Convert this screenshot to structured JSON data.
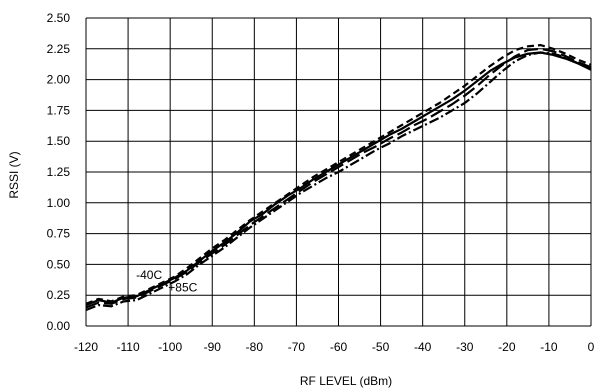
{
  "chart_data": {
    "type": "line",
    "title": "",
    "xlabel": "RF LEVEL (dBm)",
    "ylabel": "RSSI (V)",
    "xlim": [
      -120,
      0
    ],
    "ylim": [
      0,
      2.5
    ],
    "xticks": [
      -120,
      -110,
      -100,
      -90,
      -80,
      -70,
      -60,
      -50,
      -40,
      -30,
      -20,
      -10,
      0
    ],
    "xtick_labels": [
      "-120",
      "-110",
      "-100",
      "-90",
      "-80",
      "-70",
      "-60",
      "-50",
      "-40",
      "-30",
      "-20",
      "-10",
      "0"
    ],
    "yticks": [
      0,
      0.25,
      0.5,
      0.75,
      1.0,
      1.25,
      1.5,
      1.75,
      2.0,
      2.25,
      2.5
    ],
    "ytick_labels": [
      "0.00",
      "0.25",
      "0.50",
      "0.75",
      "1.00",
      "1.25",
      "1.50",
      "1.75",
      "2.00",
      "2.25",
      "2.50"
    ],
    "grid": true,
    "annotations": [
      {
        "text": "-40C",
        "x": -105,
        "y": 0.38
      },
      {
        "text": "+85C",
        "x": -97,
        "y": 0.28
      }
    ],
    "series": [
      {
        "style": "solid",
        "x": [
          -120,
          -117,
          -114,
          -111,
          -108,
          -105,
          -102,
          -99,
          -96,
          -93,
          -90,
          -87,
          -84,
          -81,
          -78,
          -75,
          -72,
          -69,
          -66,
          -63,
          -60,
          -57,
          -54,
          -51,
          -48,
          -45,
          -42,
          -39,
          -36,
          -33,
          -30,
          -27,
          -24,
          -21,
          -18,
          -15,
          -12,
          -9,
          -6,
          -3,
          0
        ],
        "y": [
          0.17,
          0.21,
          0.19,
          0.23,
          0.24,
          0.29,
          0.34,
          0.39,
          0.45,
          0.53,
          0.61,
          0.68,
          0.76,
          0.85,
          0.91,
          0.99,
          1.06,
          1.12,
          1.19,
          1.25,
          1.31,
          1.37,
          1.43,
          1.49,
          1.55,
          1.6,
          1.66,
          1.72,
          1.78,
          1.84,
          1.91,
          1.99,
          2.07,
          2.13,
          2.18,
          2.21,
          2.22,
          2.2,
          2.17,
          2.13,
          2.08
        ]
      },
      {
        "style": "dashed",
        "x": [
          -120,
          -117,
          -114,
          -111,
          -108,
          -105,
          -102,
          -99,
          -96,
          -93,
          -90,
          -87,
          -84,
          -81,
          -78,
          -75,
          -72,
          -69,
          -66,
          -63,
          -60,
          -57,
          -54,
          -51,
          -48,
          -45,
          -42,
          -39,
          -36,
          -33,
          -30,
          -27,
          -24,
          -21,
          -18,
          -15,
          -12,
          -9,
          -6,
          -3,
          0
        ],
        "y": [
          0.18,
          0.22,
          0.2,
          0.24,
          0.25,
          0.3,
          0.35,
          0.4,
          0.47,
          0.55,
          0.63,
          0.7,
          0.78,
          0.86,
          0.93,
          1.0,
          1.07,
          1.14,
          1.21,
          1.27,
          1.33,
          1.39,
          1.45,
          1.51,
          1.57,
          1.63,
          1.69,
          1.75,
          1.81,
          1.88,
          1.95,
          2.03,
          2.11,
          2.18,
          2.24,
          2.27,
          2.28,
          2.25,
          2.21,
          2.16,
          2.12
        ]
      },
      {
        "style": "dashdot",
        "x": [
          -120,
          -117,
          -114,
          -111,
          -108,
          -105,
          -102,
          -99,
          -96,
          -93,
          -90,
          -87,
          -84,
          -81,
          -78,
          -75,
          -72,
          -69,
          -66,
          -63,
          -60,
          -57,
          -54,
          -51,
          -48,
          -45,
          -42,
          -39,
          -36,
          -33,
          -30,
          -27,
          -24,
          -21,
          -18,
          -15,
          -12,
          -9,
          -6,
          -3,
          0
        ],
        "y": [
          0.13,
          0.17,
          0.16,
          0.2,
          0.21,
          0.26,
          0.31,
          0.36,
          0.42,
          0.5,
          0.57,
          0.64,
          0.72,
          0.8,
          0.87,
          0.94,
          1.01,
          1.08,
          1.14,
          1.2,
          1.25,
          1.31,
          1.37,
          1.43,
          1.48,
          1.54,
          1.59,
          1.64,
          1.69,
          1.75,
          1.81,
          1.89,
          1.98,
          2.07,
          2.15,
          2.2,
          2.22,
          2.21,
          2.18,
          2.13,
          2.09
        ]
      },
      {
        "style": "longdash",
        "x": [
          -120,
          -117,
          -114,
          -111,
          -108,
          -105,
          -102,
          -99,
          -96,
          -93,
          -90,
          -87,
          -84,
          -81,
          -78,
          -75,
          -72,
          -69,
          -66,
          -63,
          -60,
          -57,
          -54,
          -51,
          -48,
          -45,
          -42,
          -39,
          -36,
          -33,
          -30,
          -27,
          -24,
          -21,
          -18,
          -15,
          -12,
          -9,
          -6,
          -3,
          0
        ],
        "y": [
          0.15,
          0.19,
          0.18,
          0.22,
          0.23,
          0.28,
          0.33,
          0.38,
          0.44,
          0.52,
          0.59,
          0.66,
          0.74,
          0.82,
          0.89,
          0.96,
          1.03,
          1.1,
          1.17,
          1.23,
          1.29,
          1.35,
          1.41,
          1.46,
          1.52,
          1.57,
          1.63,
          1.68,
          1.74,
          1.8,
          1.87,
          1.95,
          2.04,
          2.12,
          2.19,
          2.24,
          2.25,
          2.23,
          2.19,
          2.14,
          2.1
        ]
      }
    ]
  }
}
